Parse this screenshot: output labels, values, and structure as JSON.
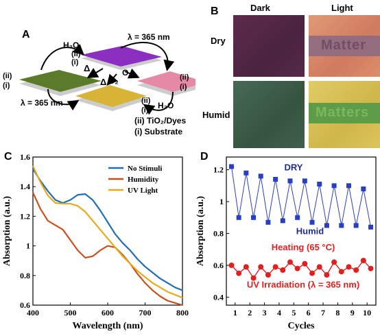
{
  "panel_a": {
    "label": "A",
    "h2o": "H₂O",
    "o2": "O₂",
    "lambda": "λ = 365 nm",
    "delta": "Δ",
    "layer_ii": "(ii)",
    "layer_i": "(i)",
    "legend_ii": "(ii) TiO₂/Dyes",
    "legend_i": "(i) Substrate",
    "colors": {
      "purple": "#8a2fc0",
      "green": "#5b7a2a",
      "pink": "#e58aa6",
      "yellow": "#d7b436"
    }
  },
  "panel_b": {
    "label": "B",
    "col_dark": "Dark",
    "col_light": "Light",
    "row_dry": "Dry",
    "row_humid": "Humid",
    "word_dry": "Matter",
    "word_humid": "Matters",
    "colors": {
      "dry_dark": "#5a2a48",
      "dry_light": "#d8856a",
      "dry_band": "#8a6a80",
      "humid_dark": "#3e5e4c",
      "humid_light": "#d9c258",
      "humid_band": "#5f9e4a"
    }
  },
  "chart_data": [
    {
      "panel": "C",
      "type": "line",
      "xlabel": "Wavelength (nm)",
      "ylabel": "Absorption (a.u.)",
      "xlim": [
        400,
        800
      ],
      "ylim": [
        0.6,
        1.6
      ],
      "xticks": [
        400,
        500,
        600,
        700,
        800
      ],
      "yticks": [
        0.6,
        0.8,
        1,
        1.2,
        1.4,
        1.6
      ],
      "legend_position": "top-right",
      "series": [
        {
          "name": "No Stimuli",
          "color": "#1f6db5",
          "x": [
            400,
            420,
            440,
            460,
            480,
            500,
            520,
            540,
            560,
            580,
            600,
            620,
            640,
            660,
            680,
            700,
            720,
            740,
            760,
            780,
            800
          ],
          "y": [
            1.52,
            1.44,
            1.37,
            1.31,
            1.29,
            1.31,
            1.345,
            1.35,
            1.31,
            1.24,
            1.16,
            1.08,
            1.02,
            0.97,
            0.91,
            0.86,
            0.82,
            0.78,
            0.75,
            0.72,
            0.7
          ]
        },
        {
          "name": "Humidity",
          "color": "#c8501e",
          "x": [
            400,
            420,
            440,
            460,
            480,
            500,
            520,
            540,
            560,
            580,
            600,
            620,
            640,
            660,
            680,
            700,
            720,
            740,
            760,
            780,
            800
          ],
          "y": [
            1.36,
            1.25,
            1.17,
            1.14,
            1.11,
            1.04,
            0.97,
            0.92,
            0.93,
            0.97,
            1.0,
            0.99,
            0.94,
            0.88,
            0.81,
            0.75,
            0.7,
            0.66,
            0.63,
            0.615,
            0.6
          ]
        },
        {
          "name": "UV Light",
          "color": "#e8a91a",
          "x": [
            400,
            420,
            440,
            460,
            480,
            500,
            520,
            540,
            560,
            580,
            600,
            620,
            640,
            660,
            680,
            700,
            720,
            740,
            760,
            780,
            800
          ],
          "y": [
            1.54,
            1.43,
            1.34,
            1.29,
            1.285,
            1.285,
            1.27,
            1.23,
            1.17,
            1.11,
            1.05,
            0.99,
            0.93,
            0.88,
            0.83,
            0.79,
            0.75,
            0.72,
            0.69,
            0.67,
            0.65
          ]
        }
      ]
    },
    {
      "panel": "D",
      "type": "scatter",
      "xlabel": "Cycles",
      "ylabel": "Absorption (a.u.)",
      "xlim": [
        0.4,
        10.6
      ],
      "ylim": [
        0.35,
        1.28
      ],
      "xticks": [
        1,
        2,
        3,
        4,
        5,
        6,
        7,
        8,
        9,
        10
      ],
      "yticks": [
        0.4,
        0.6,
        0.8,
        1,
        1.2
      ],
      "annotations": [
        "DRY",
        "Humid",
        "Heating (65 °C)",
        "UV Irradiation (λ = 365 nm)"
      ],
      "series": [
        {
          "color": "#2a3fbf",
          "x": [
            0.75,
            1.25,
            1.75,
            2.25,
            2.75,
            3.25,
            3.75,
            4.25,
            4.75,
            5.25,
            5.75,
            6.25,
            6.75,
            7.25,
            7.75,
            8.25,
            8.75,
            9.25,
            9.75,
            10.25
          ],
          "y": [
            1.22,
            0.9,
            1.18,
            0.9,
            1.16,
            0.87,
            1.14,
            0.88,
            1.13,
            0.9,
            1.13,
            0.87,
            1.11,
            0.85,
            1.1,
            0.85,
            1.1,
            0.85,
            1.08,
            0.84
          ]
        },
        {
          "color": "#e02020",
          "x": [
            0.75,
            1.25,
            1.75,
            2.25,
            2.75,
            3.25,
            3.75,
            4.25,
            4.75,
            5.25,
            5.75,
            6.25,
            6.75,
            7.25,
            7.75,
            8.25,
            8.75,
            9.25,
            9.75,
            10.25
          ],
          "y": [
            0.6,
            0.55,
            0.59,
            0.52,
            0.59,
            0.54,
            0.59,
            0.57,
            0.62,
            0.58,
            0.61,
            0.55,
            0.59,
            0.54,
            0.62,
            0.56,
            0.59,
            0.57,
            0.63,
            0.58
          ]
        }
      ]
    }
  ]
}
